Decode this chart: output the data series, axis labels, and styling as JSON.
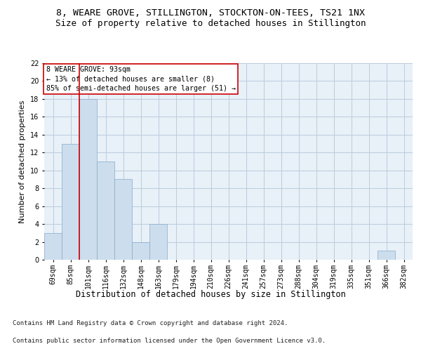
{
  "title1": "8, WEARE GROVE, STILLINGTON, STOCKTON-ON-TEES, TS21 1NX",
  "title2": "Size of property relative to detached houses in Stillington",
  "xlabel": "Distribution of detached houses by size in Stillington",
  "ylabel": "Number of detached properties",
  "categories": [
    "69sqm",
    "85sqm",
    "101sqm",
    "116sqm",
    "132sqm",
    "148sqm",
    "163sqm",
    "179sqm",
    "194sqm",
    "210sqm",
    "226sqm",
    "241sqm",
    "257sqm",
    "273sqm",
    "288sqm",
    "304sqm",
    "319sqm",
    "335sqm",
    "351sqm",
    "366sqm",
    "382sqm"
  ],
  "values": [
    3,
    13,
    18,
    11,
    9,
    2,
    4,
    0,
    0,
    0,
    0,
    0,
    0,
    0,
    0,
    0,
    0,
    0,
    0,
    1,
    0
  ],
  "bar_color": "#ccdded",
  "bar_edge_color": "#88aac8",
  "vline_color": "#cc0000",
  "annotation_text": "8 WEARE GROVE: 93sqm\n← 13% of detached houses are smaller (8)\n85% of semi-detached houses are larger (51) →",
  "annotation_box_color": "#ffffff",
  "annotation_box_edge": "#cc0000",
  "ylim": [
    0,
    22
  ],
  "yticks": [
    0,
    2,
    4,
    6,
    8,
    10,
    12,
    14,
    16,
    18,
    20,
    22
  ],
  "grid_color": "#bbccdd",
  "bg_color": "#e8f0f8",
  "footer1": "Contains HM Land Registry data © Crown copyright and database right 2024.",
  "footer2": "Contains public sector information licensed under the Open Government Licence v3.0.",
  "title1_fontsize": 9.5,
  "title2_fontsize": 9,
  "xlabel_fontsize": 8.5,
  "ylabel_fontsize": 8,
  "tick_fontsize": 7,
  "footer_fontsize": 6.5,
  "vline_bar_index": 1
}
